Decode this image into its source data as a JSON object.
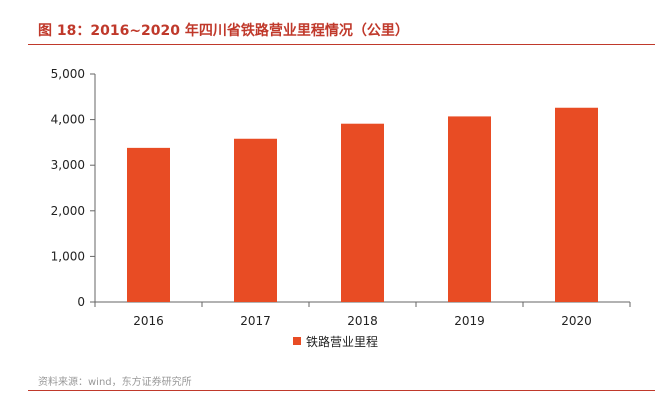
{
  "header": {
    "title": "图 18：2016~2020 年四川省铁路营业里程情况（公里）"
  },
  "footer": {
    "source": "资料来源：wind，东方证券研究所"
  },
  "colors": {
    "accent": "#c0392b",
    "bar": "#e84c24",
    "axis": "#666666"
  },
  "chart_data": {
    "type": "bar",
    "title": "2016~2020 年四川省铁路营业里程情况（公里）",
    "categories": [
      "2016",
      "2017",
      "2018",
      "2019",
      "2020"
    ],
    "series": [
      {
        "name": "铁路营业里程",
        "values": [
          3380,
          3580,
          3910,
          4070,
          4260
        ]
      }
    ],
    "y_ticks": [
      "0",
      "1,000",
      "2,000",
      "3,000",
      "4,000",
      "5,000"
    ],
    "ylim": [
      0,
      5000
    ],
    "grid": false,
    "legend_position": "bottom"
  }
}
